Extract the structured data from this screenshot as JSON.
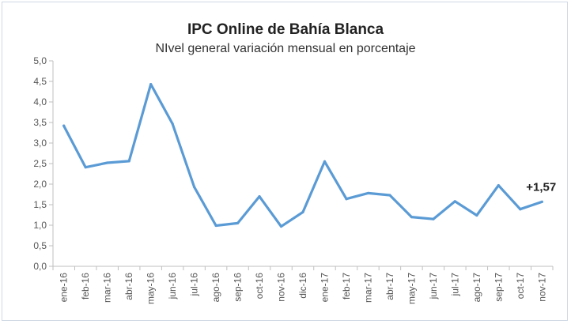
{
  "chart_data": {
    "type": "line",
    "title": "IPC Online de Bahía Blanca",
    "subtitle": "NIvel general variación mensual en porcentaje",
    "xlabel": "",
    "ylabel": "",
    "ylim": [
      0,
      5
    ],
    "yticks": [
      "0,0",
      "0,5",
      "1,0",
      "1,5",
      "2,0",
      "2,5",
      "3,0",
      "3,5",
      "4,0",
      "4,5",
      "5,0"
    ],
    "categories": [
      "ene-16",
      "feb-16",
      "mar-16",
      "abr-16",
      "may-16",
      "jun-16",
      "jul-16",
      "ago-16",
      "sep-16",
      "oct-16",
      "nov-16",
      "dic-16",
      "ene-17",
      "feb-17",
      "mar-17",
      "abr-17",
      "may-17",
      "jun-17",
      "jul-17",
      "ago-17",
      "sep-17",
      "oct-17",
      "nov-17"
    ],
    "series": [
      {
        "values": [
          3.42,
          2.41,
          2.52,
          2.56,
          4.43,
          3.47,
          1.93,
          0.99,
          1.05,
          1.7,
          0.97,
          1.32,
          2.55,
          1.64,
          1.78,
          1.73,
          1.2,
          1.15,
          1.58,
          1.24,
          1.97,
          1.39,
          1.57
        ],
        "color": "#5b9bd5"
      }
    ],
    "grid": false,
    "annotation": "+1,57"
  }
}
